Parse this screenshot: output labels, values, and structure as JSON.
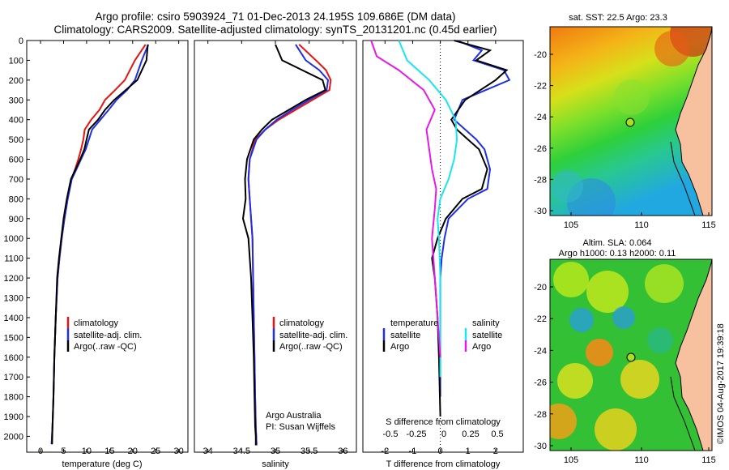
{
  "header": {
    "line1": "Argo profile: csiro 5903924_71 01-Dec-2013 24.195S 109.686E (DM data)",
    "line2": "Climatology: CARS2009. Satellite-adjusted climatology: synTS_20131201.nc (0.45d earlier)"
  },
  "colors": {
    "climatology": "#e8140f",
    "satellite": "#1f2fe6",
    "argo": "#000000",
    "satellite_salt": "#19e6f0",
    "argo_salt": "#e619e6"
  },
  "legend": {
    "climatology": "climatology",
    "satellite": "satellite-adj. clim.",
    "argo": "Argo(..raw -QC)"
  },
  "credit": {
    "line1": "Argo Australia",
    "line2": "PI: Susan Wijffels"
  },
  "diff_legend": {
    "temperature": "temperature",
    "salinity": "salinity",
    "t_sat": "satellite",
    "t_argo": "Argo",
    "s_sat": "satellite",
    "s_argo": "Argo"
  },
  "diff_titles": {
    "s": "S difference from climatology",
    "t": "T difference from climatology"
  },
  "maps": {
    "sst_title": "sat. SST: 22.5  Argo: 23.3",
    "sla_title1": "Altim. SLA: 0.064",
    "sla_title2": "Argo h1000: 0.13  h2000: 0.11",
    "yticks": [
      "-20",
      "-22",
      "-24",
      "-26",
      "-28",
      "-30"
    ],
    "xticks": [
      "105",
      "110",
      "115"
    ],
    "float_lon": 109.686,
    "float_lat": -24.195
  },
  "stamp": "©IMOS 04-Aug-2017 19:39:18",
  "chart_data": [
    {
      "type": "line",
      "xlabel": "temperature (deg C)",
      "ylabel": "",
      "xlim": [
        -3,
        32
      ],
      "ylim": [
        2080,
        0
      ],
      "xticks": [
        0,
        5,
        10,
        15,
        20,
        25,
        30
      ],
      "yticks": [
        0,
        100,
        200,
        300,
        400,
        500,
        600,
        700,
        800,
        900,
        1000,
        1100,
        1200,
        1300,
        1400,
        1500,
        1600,
        1700,
        1800,
        1900,
        2000
      ],
      "series": [
        {
          "name": "climatology",
          "color": "#e8140f",
          "x": [
            22.8,
            20.5,
            18.3,
            16.2,
            14.0,
            12.8,
            11.0,
            9.6,
            9.3,
            8.8,
            8.2,
            7.5,
            6.7,
            5.9,
            5.2,
            4.6,
            4.1,
            3.7,
            3.3,
            3.0,
            2.8,
            2.6,
            2.4
          ],
          "y": [
            20,
            100,
            200,
            250,
            300,
            350,
            400,
            450,
            500,
            550,
            600,
            650,
            700,
            800,
            900,
            1000,
            1100,
            1200,
            1400,
            1600,
            1800,
            1950,
            2040
          ]
        },
        {
          "name": "satellite-adj. clim.",
          "color": "#1f2fe6",
          "x": [
            23.4,
            22.0,
            20.5,
            18.8,
            16.5,
            14.8,
            13.0,
            11.2,
            10.5,
            9.8,
            8.8,
            7.8,
            6.8,
            5.9,
            5.2,
            4.6,
            4.1,
            3.7,
            3.3,
            3.0,
            2.8,
            2.6,
            2.4
          ],
          "y": [
            20,
            100,
            200,
            250,
            300,
            350,
            400,
            450,
            500,
            550,
            600,
            650,
            700,
            800,
            900,
            1000,
            1100,
            1200,
            1400,
            1600,
            1800,
            1950,
            2040
          ]
        },
        {
          "name": "Argo(..raw -QC)",
          "color": "#000000",
          "x": [
            23.3,
            23.0,
            21.0,
            18.5,
            16.0,
            14.0,
            12.5,
            10.5,
            10.0,
            9.5,
            8.6,
            7.6,
            6.6,
            5.7,
            5.0,
            4.5,
            4.0,
            3.6,
            3.3,
            3.0,
            2.8,
            2.6,
            2.5
          ],
          "y": [
            20,
            100,
            200,
            250,
            300,
            350,
            400,
            450,
            500,
            550,
            600,
            650,
            700,
            800,
            900,
            1000,
            1100,
            1200,
            1400,
            1600,
            1800,
            1950,
            2040
          ]
        }
      ]
    },
    {
      "type": "line",
      "xlabel": "salinity",
      "xlim": [
        33.8,
        36.2
      ],
      "ylim": [
        2080,
        0
      ],
      "xticks": [
        34,
        34.5,
        35,
        35.5,
        36
      ],
      "series": [
        {
          "name": "climatology",
          "color": "#e8140f",
          "x": [
            35.35,
            35.6,
            35.75,
            35.82,
            35.8,
            35.55,
            35.3,
            35.05,
            34.85,
            34.7,
            34.62,
            34.6,
            34.62,
            34.64,
            34.66,
            34.67,
            34.68,
            34.69,
            34.7,
            34.71,
            34.72,
            34.72
          ],
          "y": [
            20,
            100,
            150,
            200,
            250,
            300,
            350,
            400,
            450,
            500,
            600,
            700,
            800,
            900,
            1000,
            1200,
            1400,
            1600,
            1800,
            1950,
            2040,
            2045
          ]
        },
        {
          "name": "satellite-adj. clim.",
          "color": "#1f2fe6",
          "x": [
            35.3,
            35.45,
            35.65,
            35.78,
            35.76,
            35.5,
            35.25,
            35.02,
            34.85,
            34.72,
            34.62,
            34.6,
            34.62,
            34.64,
            34.66,
            34.67,
            34.68,
            34.69,
            34.7,
            34.71,
            34.72,
            34.72
          ],
          "y": [
            20,
            100,
            150,
            200,
            250,
            300,
            350,
            400,
            450,
            500,
            600,
            700,
            800,
            900,
            1000,
            1200,
            1400,
            1600,
            1800,
            1950,
            2040,
            2045
          ]
        },
        {
          "name": "Argo(..raw -QC)",
          "color": "#000000",
          "x": [
            35.0,
            35.1,
            35.4,
            35.7,
            35.74,
            35.45,
            35.2,
            34.95,
            34.8,
            34.68,
            34.58,
            34.55,
            34.56,
            34.52,
            34.6,
            34.64,
            34.66,
            34.68,
            34.69,
            34.7,
            34.71,
            34.71
          ],
          "y": [
            20,
            100,
            150,
            200,
            250,
            300,
            350,
            400,
            450,
            500,
            600,
            700,
            800,
            900,
            1000,
            1200,
            1400,
            1600,
            1800,
            1950,
            2000,
            2045
          ]
        }
      ]
    },
    {
      "type": "line",
      "xlabel": "T difference from climatology",
      "xlim": [
        -2.8,
        3.0
      ],
      "ylim": [
        2080,
        0
      ],
      "xticks": [
        -2,
        -1,
        0,
        1,
        2
      ],
      "secondary_x": {
        "label": "S difference from climatology",
        "ticks": [
          "-0.5",
          "-0.25",
          "0",
          "0.25",
          "0.5"
        ]
      },
      "series": [
        {
          "name": "temperature satellite",
          "color": "#1f2fe6",
          "x": [
            0.6,
            1.5,
            1.2,
            2.3,
            2.5,
            0.8,
            0.5,
            0.9,
            1.3,
            1.6,
            1.8,
            1.7,
            1.0,
            0.3,
            0.15,
            0.05,
            0.0,
            0.0,
            0.0,
            0.0
          ],
          "y": [
            0,
            50,
            100,
            150,
            200,
            300,
            400,
            450,
            500,
            550,
            650,
            750,
            800,
            900,
            1000,
            1100,
            1200,
            1400,
            1600,
            1800
          ]
        },
        {
          "name": "temperature Argo",
          "color": "#000000",
          "x": [
            0.5,
            1.8,
            1.3,
            2.4,
            2.0,
            0.9,
            0.4,
            0.6,
            1.0,
            1.4,
            1.7,
            1.5,
            0.8,
            0.2,
            -0.1,
            -0.3,
            -0.2,
            -0.1,
            -0.05,
            0.0
          ],
          "y": [
            0,
            50,
            100,
            150,
            200,
            300,
            400,
            450,
            500,
            550,
            650,
            750,
            800,
            900,
            1000,
            1100,
            1200,
            1400,
            1600,
            1900
          ]
        },
        {
          "name": "salinity satellite",
          "color": "#19e6f0",
          "x": [
            -1.5,
            -1.2,
            -0.4,
            0.2,
            0.55,
            0.6,
            0.5,
            0.3,
            0.0,
            -0.1,
            -0.05,
            0.0,
            0.0,
            0.0,
            0.0
          ],
          "y": [
            0,
            100,
            200,
            300,
            400,
            500,
            600,
            700,
            800,
            900,
            1000,
            1200,
            1400,
            1600,
            1700
          ]
        },
        {
          "name": "salinity Argo",
          "color": "#e619e6",
          "x": [
            -2.5,
            -2.3,
            -1.5,
            -0.6,
            -0.2,
            -0.5,
            -0.4,
            -0.3,
            -0.15,
            -0.2,
            -0.3,
            -0.2,
            -0.1,
            0.0
          ],
          "y": [
            0,
            80,
            150,
            250,
            350,
            450,
            550,
            650,
            750,
            850,
            1000,
            1200,
            1400,
            1600
          ]
        }
      ]
    }
  ]
}
